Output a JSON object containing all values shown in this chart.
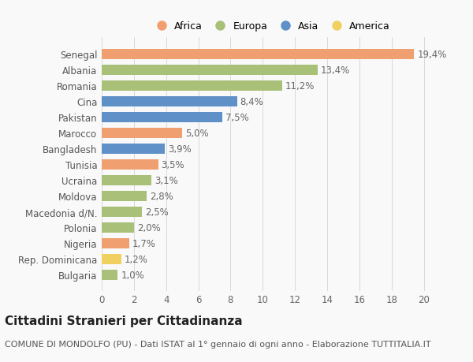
{
  "countries": [
    "Bulgaria",
    "Rep. Dominicana",
    "Nigeria",
    "Polonia",
    "Macedonia d/N.",
    "Moldova",
    "Ucraina",
    "Tunisia",
    "Bangladesh",
    "Marocco",
    "Pakistan",
    "Cina",
    "Romania",
    "Albania",
    "Senegal"
  ],
  "values": [
    1.0,
    1.2,
    1.7,
    2.0,
    2.5,
    2.8,
    3.1,
    3.5,
    3.9,
    5.0,
    7.5,
    8.4,
    11.2,
    13.4,
    19.4
  ],
  "labels": [
    "1,0%",
    "1,2%",
    "1,7%",
    "2,0%",
    "2,5%",
    "2,8%",
    "3,1%",
    "3,5%",
    "3,9%",
    "5,0%",
    "7,5%",
    "8,4%",
    "11,2%",
    "13,4%",
    "19,4%"
  ],
  "colors": [
    "#a8c078",
    "#f0d060",
    "#f0a070",
    "#a8c078",
    "#a8c078",
    "#a8c078",
    "#a8c078",
    "#f0a070",
    "#6090c8",
    "#f0a070",
    "#6090c8",
    "#6090c8",
    "#a8c078",
    "#a8c078",
    "#f0a070"
  ],
  "legend_labels": [
    "Africa",
    "Europa",
    "Asia",
    "America"
  ],
  "legend_colors": [
    "#f0a070",
    "#a8c078",
    "#6090c8",
    "#f0d060"
  ],
  "xlim": [
    0,
    21
  ],
  "xticks": [
    0,
    2,
    4,
    6,
    8,
    10,
    12,
    14,
    16,
    18,
    20
  ],
  "title": "Cittadini Stranieri per Cittadinanza",
  "subtitle": "COMUNE DI MONDOLFO (PU) - Dati ISTAT al 1° gennaio di ogni anno - Elaborazione TUTTITALIA.IT",
  "bg_color": "#f9f9f9",
  "bar_height": 0.65,
  "label_fontsize": 8.5,
  "ytick_fontsize": 8.5,
  "xtick_fontsize": 8.5,
  "title_fontsize": 11,
  "subtitle_fontsize": 8,
  "legend_fontsize": 9,
  "legend_markersize": 9
}
